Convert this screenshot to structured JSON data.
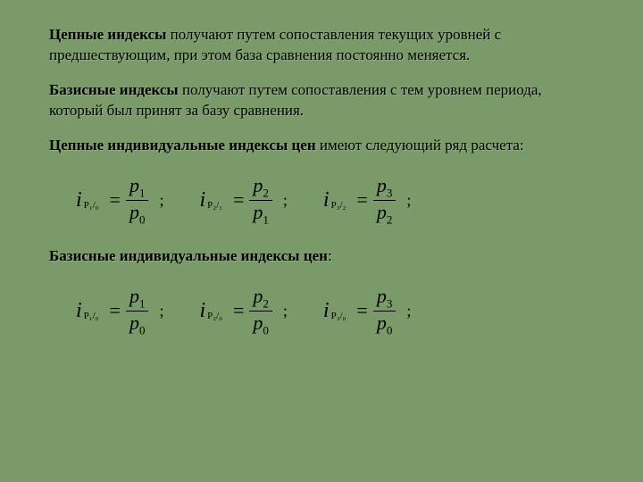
{
  "para1": {
    "bold": "Цепные индексы",
    "rest": " получают путем сопоставления текущих уровней с предшествующим, при этом база сравнения постоянно меняется."
  },
  "para2": {
    "bold": "Базисные индексы",
    "rest": " получают путем сопоставления с тем уровнем периода, который был принят за базу сравнения."
  },
  "para3": {
    "bold": "Цепные индивидуальные индексы цен",
    "rest": " имеют следующий ряд расчета:"
  },
  "para4": {
    "bold": "Базисные индивидуальные индексы цен",
    "rest": ":"
  },
  "chain": [
    {
      "lhs_sub": "P₁/₀",
      "num": "p",
      "num_sub": "1",
      "den": "p",
      "den_sub": "0"
    },
    {
      "lhs_sub": "P₂/₁",
      "num": "p",
      "num_sub": "2",
      "den": "p",
      "den_sub": "1"
    },
    {
      "lhs_sub": "P₃/₂",
      "num": "p",
      "num_sub": "3",
      "den": "p",
      "den_sub": "2"
    }
  ],
  "base": [
    {
      "lhs_sub": "P₁/₀",
      "num": "p",
      "num_sub": "1",
      "den": "p",
      "den_sub": "0"
    },
    {
      "lhs_sub": "P₂/₀",
      "num": "p",
      "num_sub": "2",
      "den": "p",
      "den_sub": "0"
    },
    {
      "lhs_sub": "P₃/₀",
      "num": "p",
      "num_sub": "3",
      "den": "p",
      "den_sub": "0"
    }
  ],
  "style": {
    "background": "#7a9a6a",
    "text_color": "#000000",
    "body_fontsize": 17,
    "formula_fontsize": 22
  }
}
